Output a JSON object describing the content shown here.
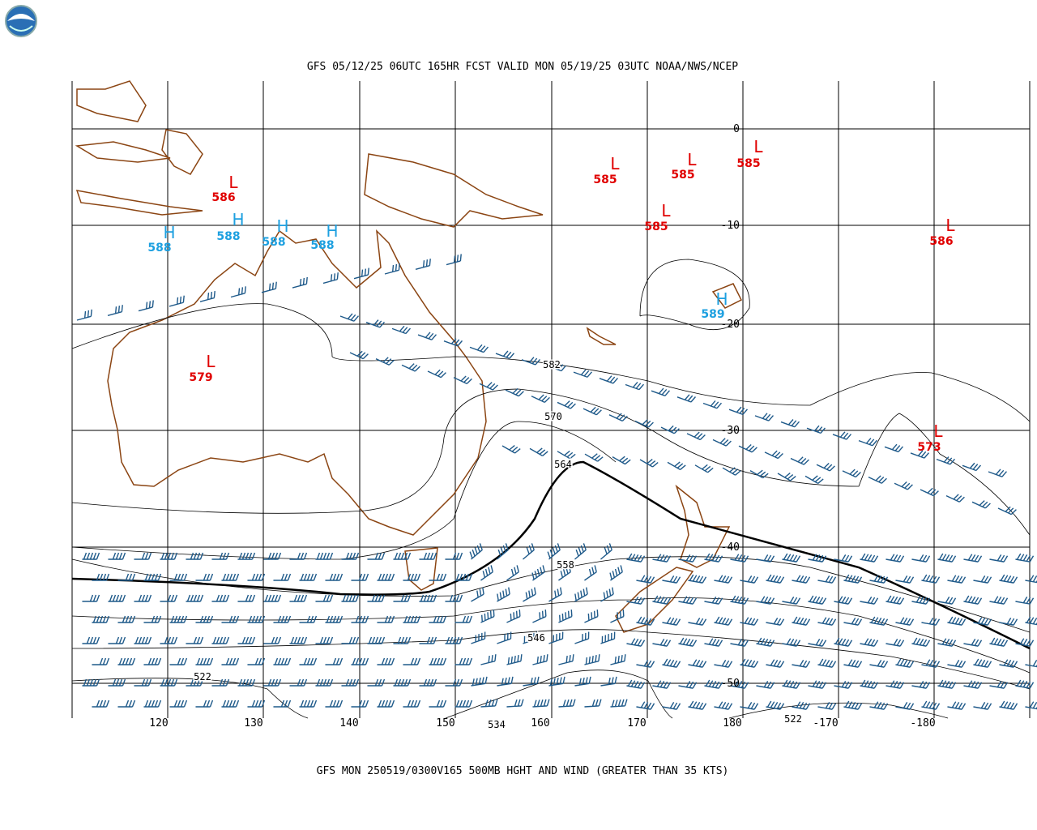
{
  "header": {
    "title": "GFS 05/12/25 06UTC 165HR FCST VALID MON 05/19/25 03UTC NOAA/NWS/NCEP"
  },
  "footer": {
    "caption": "GFS MON 250519/0300V165 500MB HGHT AND WIND (GREATER THAN 35 KTS)"
  },
  "lon_labels": [
    "120",
    "130",
    "140",
    "150",
    "160",
    "170",
    "180",
    "-170",
    "-180"
  ],
  "lat_labels": [
    "0",
    "-10",
    "-20",
    "-30",
    "-40",
    "-50"
  ],
  "centers": [
    {
      "symbol": "L",
      "value": "586"
    },
    {
      "symbol": "H",
      "value": "588"
    },
    {
      "symbol": "H",
      "value": "588"
    },
    {
      "symbol": "H",
      "value": "588"
    },
    {
      "symbol": "H",
      "value": "588"
    },
    {
      "symbol": "L",
      "value": "585"
    },
    {
      "symbol": "L",
      "value": "585"
    },
    {
      "symbol": "L",
      "value": "585"
    },
    {
      "symbol": "L",
      "value": "585"
    },
    {
      "symbol": "L",
      "value": "586"
    },
    {
      "symbol": "H",
      "value": "589"
    },
    {
      "symbol": "L",
      "value": "579"
    },
    {
      "symbol": "L",
      "value": "573"
    }
  ],
  "contour_labels": [
    "582",
    "570",
    "564",
    "558",
    "546",
    "534",
    "522",
    "522"
  ]
}
